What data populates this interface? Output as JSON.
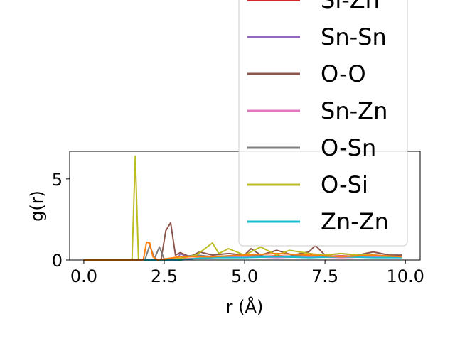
{
  "chart_data": {
    "type": "line",
    "xlabel": "r (Å)",
    "ylabel": "g(r)",
    "xlim": [
      -0.44,
      10.46
    ],
    "ylim": [
      0,
      6.7
    ],
    "xticks": [
      "0.0",
      "2.5",
      "5.0",
      "7.5",
      "10.0"
    ],
    "xtick_values": [
      0,
      2.5,
      5,
      7.5,
      10
    ],
    "yticks": [
      "0",
      "5"
    ],
    "ytick_values": [
      0,
      5
    ],
    "grid": false,
    "legend_position": "upper-right (overflowing top)",
    "legend_visible": [
      "Si-Zn",
      "Sn-Sn",
      "O-O",
      "Sn-Zn",
      "O-Sn",
      "O-Si",
      "Zn-Zn"
    ],
    "series": [
      {
        "name": "Si-Zn",
        "color": "#d62728",
        "x": [
          0,
          1.5,
          2.5,
          3.0,
          3.5,
          4.0,
          5.0,
          6.0,
          7.0,
          8.0,
          9.0,
          9.9
        ],
        "y": [
          0,
          0,
          0,
          0.05,
          0.1,
          0.15,
          0.2,
          0.25,
          0.2,
          0.25,
          0.2,
          0.2
        ]
      },
      {
        "name": "Sn-Sn",
        "color": "#9467bd",
        "x": [
          0,
          2.9,
          3.0,
          3.2,
          3.5,
          4.0,
          5.0,
          6.0,
          7.0,
          8.0,
          9.0,
          9.9
        ],
        "y": [
          0,
          0,
          0.4,
          0.2,
          0.3,
          0.2,
          0.3,
          0.2,
          0.3,
          0.2,
          0.2,
          0.2
        ]
      },
      {
        "name": "O-O",
        "color": "#8c564b",
        "x": [
          0,
          2.4,
          2.55,
          2.7,
          2.85,
          3.0,
          3.3,
          3.6,
          4.0,
          4.5,
          5.0,
          5.2,
          5.5,
          6.0,
          6.5,
          7.0,
          7.2,
          7.5,
          8.0,
          8.5,
          9.0,
          9.5,
          9.9
        ],
        "y": [
          0,
          0,
          1.8,
          2.3,
          0.3,
          0.45,
          0.2,
          0.5,
          0.3,
          0.4,
          0.3,
          0.7,
          0.3,
          0.6,
          0.3,
          0.5,
          0.9,
          0.3,
          0.4,
          0.3,
          0.5,
          0.3,
          0.3
        ]
      },
      {
        "name": "Sn-Zn",
        "color": "#e377c2",
        "x": [
          0,
          3.0,
          3.5,
          4.0,
          5.0,
          6.0,
          7.0,
          8.0,
          9.0,
          9.9
        ],
        "y": [
          0,
          0,
          0.1,
          0.15,
          0.2,
          0.15,
          0.2,
          0.15,
          0.2,
          0.15
        ]
      },
      {
        "name": "O-Sn",
        "color": "#7f7f7f",
        "x": [
          0,
          1.9,
          2.05,
          2.2,
          2.35,
          2.5,
          2.7,
          3.0,
          3.5,
          4.0,
          5.0,
          6.0,
          7.0,
          8.0,
          9.0,
          9.9
        ],
        "y": [
          0,
          0,
          0.9,
          0.1,
          0.8,
          0.05,
          0.1,
          0.2,
          0.3,
          0.2,
          0.3,
          0.2,
          0.3,
          0.2,
          0.3,
          0.2
        ]
      },
      {
        "name": "O-Si",
        "color": "#bcbd22",
        "x": [
          0,
          1.5,
          1.6,
          1.7,
          2.0,
          3.0,
          3.5,
          4.0,
          4.2,
          4.5,
          5.0,
          5.5,
          6.0,
          6.4,
          7.0,
          7.5,
          8.0,
          8.5,
          9.0,
          9.5,
          9.9
        ],
        "y": [
          0,
          0,
          6.4,
          0,
          0,
          0.1,
          0.3,
          1.05,
          0.4,
          0.7,
          0.3,
          0.8,
          0.3,
          0.6,
          0.4,
          0.3,
          0.4,
          0.3,
          0.3,
          0.2,
          0.2
        ]
      },
      {
        "name": "Zn-Zn",
        "color": "#17becf",
        "x": [
          0,
          3.0,
          3.5,
          4.0,
          5.0,
          6.0,
          7.0,
          8.0,
          9.0,
          9.9
        ],
        "y": [
          0,
          0,
          0.1,
          0.15,
          0.15,
          0.2,
          0.15,
          0.2,
          0.15,
          0.15
        ]
      },
      {
        "name": "",
        "color": "#ff7f0e",
        "x": [
          0,
          1.85,
          1.95,
          2.05,
          2.15,
          2.3,
          3.0,
          4.0,
          5.0,
          6.0,
          7.0,
          8.0,
          9.0,
          9.9
        ],
        "y": [
          0,
          0,
          1.1,
          1.05,
          0.2,
          0,
          0.2,
          0.2,
          0.3,
          0.4,
          0.3,
          0.2,
          0.3,
          0.2
        ]
      }
    ]
  }
}
